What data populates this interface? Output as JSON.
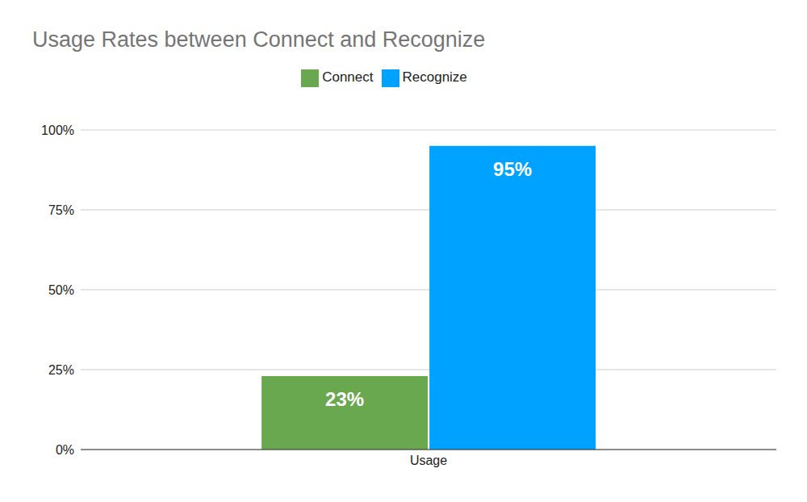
{
  "chart_data": {
    "type": "bar",
    "title": "Usage Rates between Connect and Recognize",
    "categories": [
      "Usage"
    ],
    "series": [
      {
        "name": "Connect",
        "color": "#6aa84f",
        "values": [
          23
        ],
        "value_labels": [
          "23%"
        ]
      },
      {
        "name": "Recognize",
        "color": "#00a2ff",
        "values": [
          95
        ],
        "value_labels": [
          "95%"
        ]
      }
    ],
    "ylim": [
      0,
      100
    ],
    "yticks": [
      {
        "value": 0,
        "label": "0%"
      },
      {
        "value": 25,
        "label": "25%"
      },
      {
        "value": 50,
        "label": "50%"
      },
      {
        "value": 75,
        "label": "75%"
      },
      {
        "value": 100,
        "label": "100%"
      }
    ],
    "grid": true,
    "legend": "top",
    "data_labels": true
  }
}
